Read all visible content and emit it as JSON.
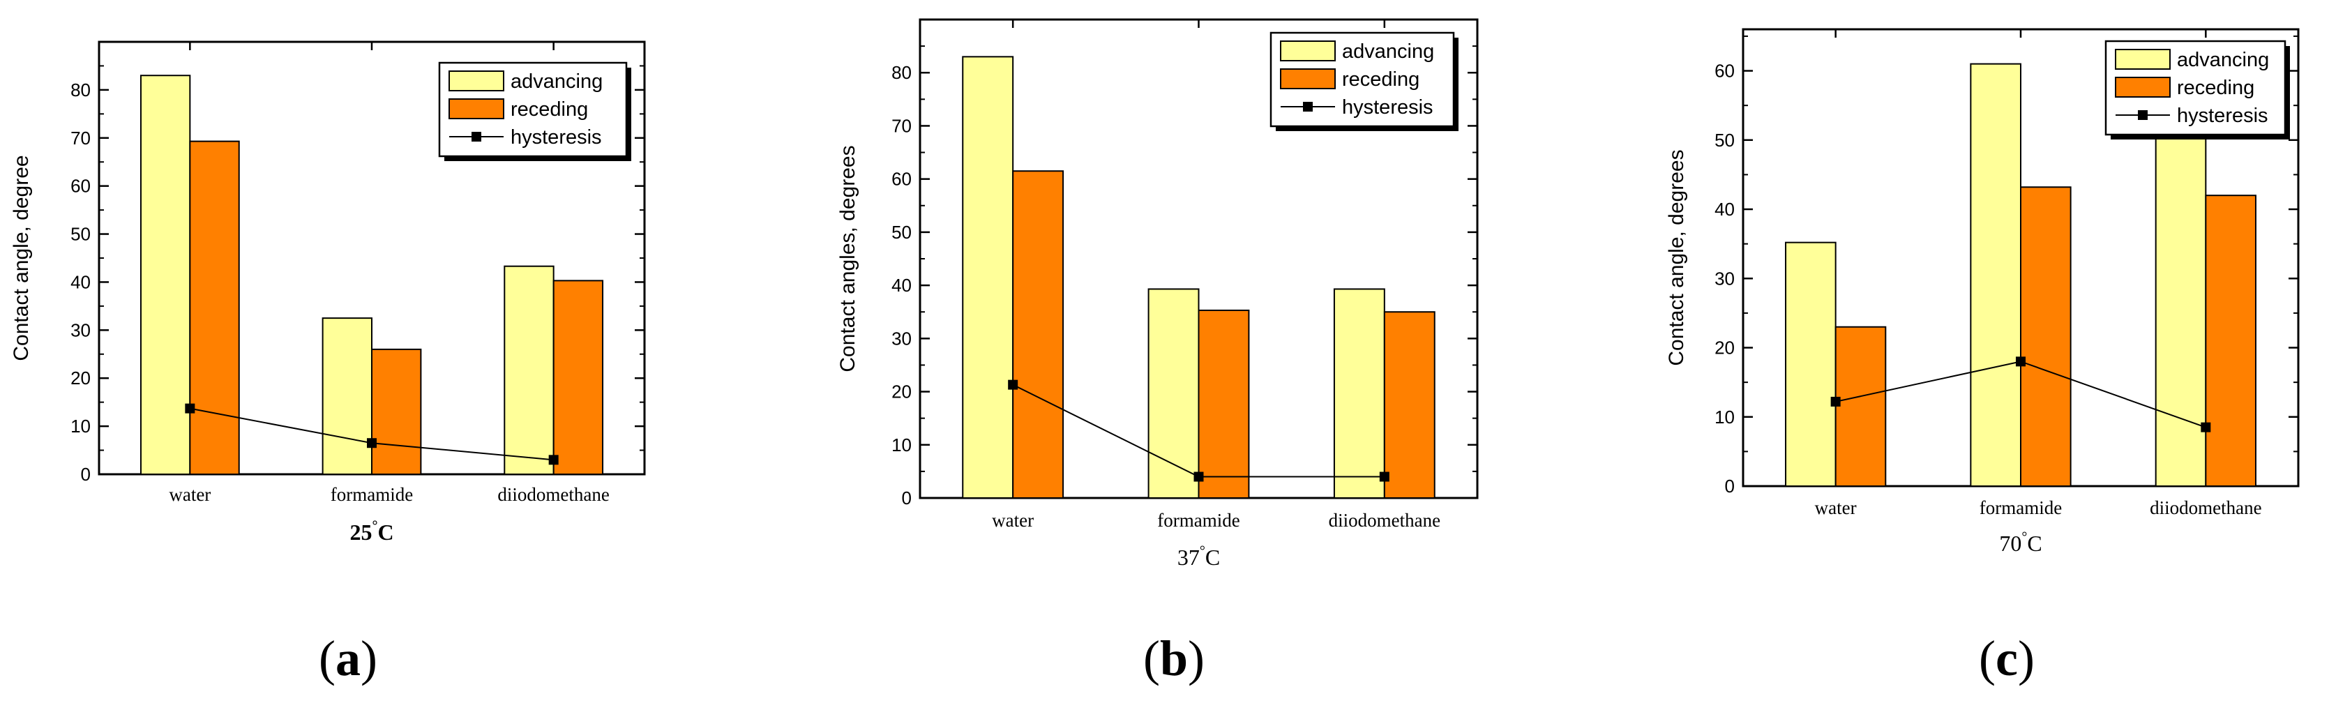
{
  "colors": {
    "advancing": "#ffff99",
    "receding": "#ff8000",
    "hysteresis": "#000000",
    "frame": "#000000"
  },
  "chart_data": [
    {
      "type": "bar",
      "panel_label": "(a)",
      "title": "25",
      "temp_prefix": "25",
      "temp_suffix": "C",
      "degree_mark": "°",
      "xlabel": "",
      "ylabel": "Contact angle, degree",
      "ylim": [
        0,
        90
      ],
      "yticks": [
        0,
        10,
        20,
        30,
        40,
        50,
        60,
        70,
        80
      ],
      "categories": [
        "water",
        "formamide",
        "diiodomethane"
      ],
      "series": [
        {
          "name": "advancing",
          "type": "bar",
          "values": [
            83,
            32.5,
            43.3
          ]
        },
        {
          "name": "receding",
          "type": "bar",
          "values": [
            69.3,
            26,
            40.3
          ]
        },
        {
          "name": "hysteresis",
          "type": "line",
          "values": [
            13.7,
            6.5,
            3
          ]
        }
      ],
      "legend": [
        "advancing",
        "receding",
        "hysteresis"
      ],
      "legend_position": "top-right"
    },
    {
      "type": "bar",
      "panel_label": "(b)",
      "title": "37",
      "temp_prefix": "37",
      "temp_suffix": "C",
      "degree_mark": "°",
      "xlabel": "",
      "ylabel": "Contact angles, degrees",
      "ylim": [
        0,
        90
      ],
      "yticks": [
        0,
        10,
        20,
        30,
        40,
        50,
        60,
        70,
        80
      ],
      "categories": [
        "water",
        "formamide",
        "diiodomethane"
      ],
      "series": [
        {
          "name": "advancing",
          "type": "bar",
          "values": [
            83,
            39.3,
            39.3
          ]
        },
        {
          "name": "receding",
          "type": "bar",
          "values": [
            61.5,
            35.3,
            35
          ]
        },
        {
          "name": "hysteresis",
          "type": "line",
          "values": [
            21.3,
            4,
            4
          ]
        }
      ],
      "legend": [
        "advancing",
        "receding",
        "hysteresis"
      ],
      "legend_position": "top-right"
    },
    {
      "type": "bar",
      "panel_label": "(c)",
      "title": "70",
      "temp_prefix": "70",
      "temp_suffix": "C",
      "degree_mark": "°",
      "xlabel": "",
      "ylabel": "Contact angle, degrees",
      "ylim": [
        0,
        66
      ],
      "yticks": [
        0,
        10,
        20,
        30,
        40,
        50,
        60
      ],
      "categories": [
        "water",
        "formamide",
        "diiodomethane"
      ],
      "series": [
        {
          "name": "advancing",
          "type": "bar",
          "values": [
            35.2,
            61,
            50.5
          ]
        },
        {
          "name": "receding",
          "type": "bar",
          "values": [
            23,
            43.2,
            42
          ]
        },
        {
          "name": "hysteresis",
          "type": "line",
          "values": [
            12.2,
            18,
            8.5
          ]
        }
      ],
      "legend": [
        "advancing",
        "receding",
        "hysteresis"
      ],
      "legend_position": "top-right"
    }
  ]
}
